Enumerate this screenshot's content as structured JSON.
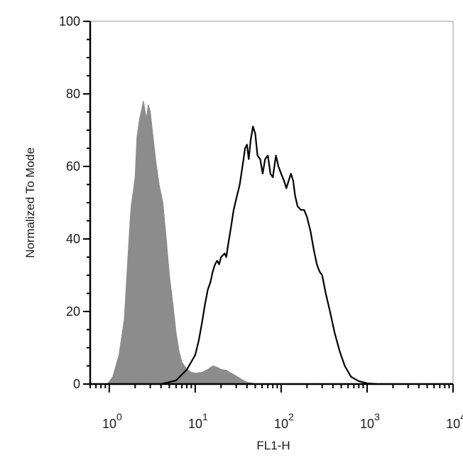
{
  "chart_data": {
    "type": "area",
    "xlabel": "FL1-H",
    "ylabel": "Normalized To Mode",
    "xscale": "log",
    "xlim": [
      0.6,
      10000
    ],
    "ylim": [
      0,
      100
    ],
    "grid": false,
    "legend": "none",
    "y_ticks": [
      0,
      20,
      40,
      60,
      80,
      100
    ],
    "x_ticks": [
      {
        "value": 1,
        "base": "10",
        "exp": "0"
      },
      {
        "value": 10,
        "base": "10",
        "exp": "1"
      },
      {
        "value": 100,
        "base": "10",
        "exp": "2"
      },
      {
        "value": 1000,
        "base": "10",
        "exp": "3"
      },
      {
        "value": 10000,
        "base": "10",
        "exp": "4"
      }
    ],
    "series": [
      {
        "style": "filled",
        "fill": "#8c8c8c",
        "stroke": "#8c8c8c",
        "points": [
          [
            0.95,
            0
          ],
          [
            1.1,
            2
          ],
          [
            1.3,
            8
          ],
          [
            1.5,
            18
          ],
          [
            1.65,
            35
          ],
          [
            1.75,
            45
          ],
          [
            1.8,
            49
          ],
          [
            1.9,
            53
          ],
          [
            2.0,
            57
          ],
          [
            2.1,
            68
          ],
          [
            2.25,
            73
          ],
          [
            2.4,
            76
          ],
          [
            2.5,
            78
          ],
          [
            2.7,
            73
          ],
          [
            2.85,
            77
          ],
          [
            3.0,
            75
          ],
          [
            3.2,
            69
          ],
          [
            3.5,
            61
          ],
          [
            3.8,
            55
          ],
          [
            4.2,
            50
          ],
          [
            4.6,
            40
          ],
          [
            5.0,
            30
          ],
          [
            5.5,
            22
          ],
          [
            6.0,
            14
          ],
          [
            6.5,
            9
          ],
          [
            7.0,
            6
          ],
          [
            8.0,
            4
          ],
          [
            9.0,
            3.2
          ],
          [
            10,
            3
          ],
          [
            12,
            3.2
          ],
          [
            14,
            4
          ],
          [
            16,
            5
          ],
          [
            18,
            4.6
          ],
          [
            20,
            4
          ],
          [
            23,
            3.8
          ],
          [
            26,
            3
          ],
          [
            30,
            2.2
          ],
          [
            35,
            1.2
          ],
          [
            40,
            0.5
          ],
          [
            50,
            0.1
          ],
          [
            60,
            0
          ]
        ]
      },
      {
        "style": "outline",
        "stroke": "#000000",
        "points": [
          [
            4,
            0
          ],
          [
            6,
            1
          ],
          [
            8,
            4
          ],
          [
            10,
            8
          ],
          [
            11,
            12
          ],
          [
            12,
            17
          ],
          [
            13,
            22
          ],
          [
            14,
            26
          ],
          [
            15,
            28
          ],
          [
            16,
            31
          ],
          [
            17,
            33
          ],
          [
            18,
            34
          ],
          [
            19,
            33
          ],
          [
            20,
            35
          ],
          [
            22,
            36
          ],
          [
            23,
            35
          ],
          [
            24,
            38
          ],
          [
            26,
            43
          ],
          [
            28,
            48
          ],
          [
            30,
            51
          ],
          [
            33,
            55
          ],
          [
            36,
            61
          ],
          [
            38,
            65
          ],
          [
            40,
            66
          ],
          [
            42,
            62
          ],
          [
            44,
            67
          ],
          [
            47,
            71
          ],
          [
            50,
            69
          ],
          [
            53,
            63
          ],
          [
            57,
            62
          ],
          [
            61,
            58
          ],
          [
            65,
            62
          ],
          [
            70,
            63
          ],
          [
            75,
            58
          ],
          [
            80,
            57
          ],
          [
            87,
            63
          ],
          [
            93,
            60
          ],
          [
            100,
            58
          ],
          [
            108,
            56
          ],
          [
            115,
            54
          ],
          [
            122,
            56
          ],
          [
            130,
            58
          ],
          [
            138,
            56
          ],
          [
            145,
            52
          ],
          [
            155,
            49
          ],
          [
            170,
            48
          ],
          [
            185,
            48
          ],
          [
            200,
            46
          ],
          [
            220,
            42
          ],
          [
            240,
            37
          ],
          [
            260,
            33
          ],
          [
            280,
            31
          ],
          [
            300,
            30
          ],
          [
            330,
            25
          ],
          [
            370,
            20
          ],
          [
            420,
            14
          ],
          [
            480,
            9
          ],
          [
            550,
            5
          ],
          [
            650,
            2
          ],
          [
            800,
            0.8
          ],
          [
            1000,
            0.2
          ],
          [
            1300,
            0
          ]
        ]
      }
    ]
  }
}
